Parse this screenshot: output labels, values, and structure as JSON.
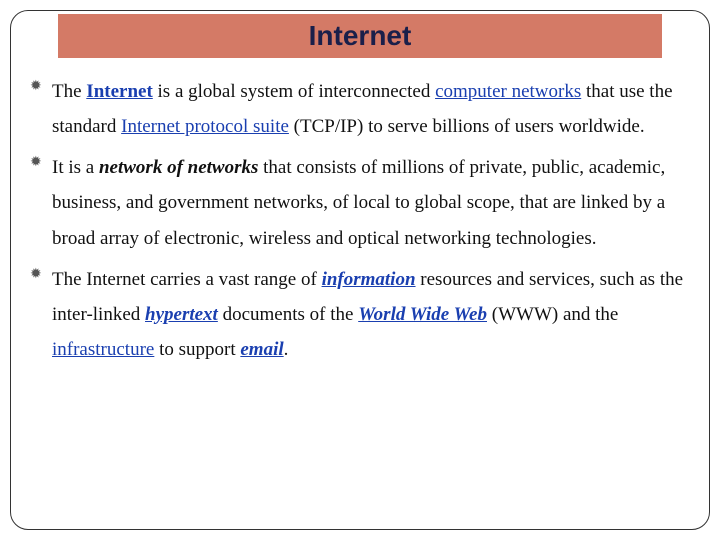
{
  "colors": {
    "title_bar_bg": "#d47a66",
    "title_text": "#1a1f4a",
    "link": "#1a3fb0",
    "body_text": "#111111",
    "frame_border": "#333333",
    "background": "#ffffff"
  },
  "typography": {
    "title_fontsize": 28,
    "body_fontsize": 19,
    "line_height": 1.85,
    "title_font": "Comic Sans MS / Trebuchet-like",
    "body_font": "Garamond / Georgia serif"
  },
  "title": "Internet",
  "bullets": [
    {
      "segments": [
        {
          "t": "The ",
          "cls": ""
        },
        {
          "t": "Internet",
          "cls": "link bold"
        },
        {
          "t": " is a global system of interconnected ",
          "cls": ""
        },
        {
          "t": "computer networks",
          "cls": "link"
        },
        {
          "t": " that use the standard ",
          "cls": ""
        },
        {
          "t": "Internet protocol suite",
          "cls": "link"
        },
        {
          "t": " (TCP/IP) to serve billions of users worldwide.",
          "cls": ""
        }
      ]
    },
    {
      "segments": [
        {
          "t": "It is a ",
          "cls": ""
        },
        {
          "t": "network of networks",
          "cls": "bi"
        },
        {
          "t": " that consists of millions of private, public, academic, business, and government networks, of local to global scope, that are linked by a broad array of electronic, wireless and optical networking technologies.",
          "cls": ""
        }
      ]
    },
    {
      "segments": [
        {
          "t": " The Internet carries a vast range of ",
          "cls": ""
        },
        {
          "t": "information",
          "cls": "ital-link"
        },
        {
          "t": " resources and services, such as the inter-linked ",
          "cls": ""
        },
        {
          "t": "hypertext",
          "cls": "ital-link"
        },
        {
          "t": " documents of the ",
          "cls": ""
        },
        {
          "t": "World Wide Web",
          "cls": "ital-link"
        },
        {
          "t": " (WWW) and the ",
          "cls": ""
        },
        {
          "t": "infrastructure",
          "cls": "link"
        },
        {
          "t": " to support ",
          "cls": ""
        },
        {
          "t": "email",
          "cls": "ital-link"
        },
        {
          "t": ".",
          "cls": ""
        }
      ]
    }
  ]
}
